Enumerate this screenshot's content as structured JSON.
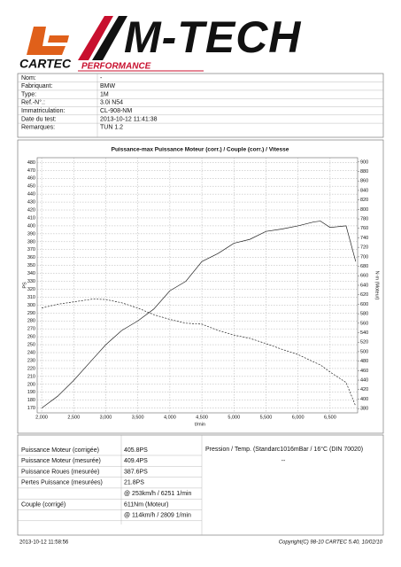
{
  "header": {
    "brand": "CARTEC",
    "logo": "M-TECH",
    "tagline": "PERFORMANCE"
  },
  "info": [
    [
      "Nom:",
      "-"
    ],
    [
      "Fabriquant:",
      "BMW"
    ],
    [
      "Type:",
      "1M"
    ],
    [
      "Ref.-N°.:",
      "3.0i N54"
    ],
    [
      "Immatriculation:",
      "CL-908-NM"
    ],
    [
      "Date du test:",
      "2013-10-12 11:41:38"
    ],
    [
      "Remarques:",
      "TUN 1.2"
    ]
  ],
  "chart_data": {
    "type": "line",
    "title": "Puissance-max Puissance Moteur (corr.) / Couple (corr.) / Vitesse",
    "x_label": "t/min",
    "y_label": "PS",
    "y2_label": "N·m (Moteur)",
    "x": [
      2000,
      2250,
      2500,
      2800,
      3000,
      3250,
      3500,
      3750,
      4000,
      4250,
      4500,
      4750,
      5000,
      5250,
      5500,
      5750,
      6000,
      6250,
      6350,
      6500,
      6750,
      6900
    ],
    "series": [
      {
        "name": "Puissance Moteur (corr.)",
        "color": "#222222",
        "dash": false,
        "values": [
          170,
          185,
          205,
          232,
          250,
          268,
          280,
          295,
          318,
          330,
          355,
          365,
          378,
          383,
          393,
          396,
          400,
          405,
          406,
          398,
          400,
          355
        ]
      },
      {
        "name": "Couple (corr.)",
        "color": "#222222",
        "dash": true,
        "axis": "y2",
        "values": [
          592,
          600,
          605,
          611,
          610,
          603,
          592,
          578,
          568,
          560,
          558,
          545,
          535,
          528,
          517,
          505,
          494,
          478,
          472,
          457,
          435,
          385
        ]
      }
    ],
    "xlim": [
      1930,
      6930
    ],
    "xticks": [
      {
        "value": 2000,
        "label": "2,000"
      },
      {
        "value": 2500,
        "label": "2,500"
      },
      {
        "value": 3000,
        "label": "3,000"
      },
      {
        "value": 3500,
        "label": "3,500"
      },
      {
        "value": 4000,
        "label": "4,000"
      },
      {
        "value": 4500,
        "label": "4,500"
      },
      {
        "value": 5000,
        "label": "5,000"
      },
      {
        "value": 5500,
        "label": "5,500"
      },
      {
        "value": 6000,
        "label": "6,000"
      },
      {
        "value": 6500,
        "label": "6,500"
      }
    ],
    "ylim": [
      164,
      486
    ],
    "yticks": [
      170,
      180,
      190,
      200,
      210,
      220,
      230,
      240,
      250,
      260,
      270,
      280,
      290,
      300,
      310,
      320,
      330,
      340,
      350,
      360,
      370,
      380,
      390,
      400,
      410,
      420,
      430,
      440,
      450,
      460,
      470,
      480
    ],
    "y2lim": [
      371,
      909
    ],
    "y2ticks": [
      380,
      400,
      420,
      440,
      460,
      480,
      500,
      520,
      540,
      560,
      580,
      600,
      620,
      640,
      660,
      680,
      700,
      720,
      740,
      760,
      780,
      800,
      820,
      840,
      860,
      880,
      900
    ],
    "grid": true
  },
  "results": [
    {
      "label": "Puissance Moteur (corrigée)",
      "value": "405.8PS"
    },
    {
      "label": "Puissance Moteur (mesurée)",
      "value": "409.4PS"
    },
    {
      "label": "Puissance Roues (mesurée)",
      "value": "387.6PS"
    },
    {
      "label": "Pertes Puissance (mesurées)",
      "value": "21.8PS"
    },
    {
      "value": "@ 253km/h / 6251 1/min"
    },
    {
      "label": "Couple (corrigé)",
      "value": "611Nm (Moteur)"
    },
    {
      "value": "@ 114km/h / 2809 1/min"
    }
  ],
  "conditions": {
    "text": "Pression / Temp. (Standarc1016mBar / 16°C   (DIN 70020)",
    "value": "--"
  },
  "footer": {
    "left": "2013-10-12 11:58:56",
    "right": "Copyright(C) 98-10 CARTEC 5.40, 10/02/10"
  }
}
